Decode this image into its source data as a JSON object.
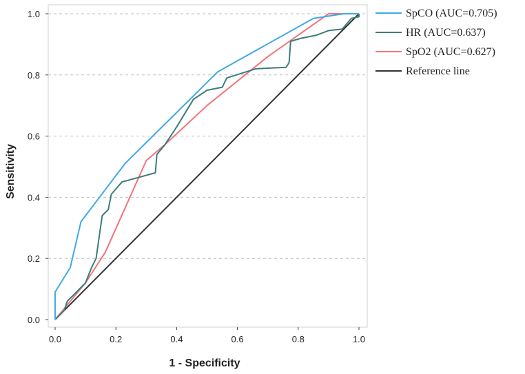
{
  "chart_data": {
    "type": "line",
    "title": "",
    "xlabel": "1 - Specificity",
    "ylabel": "Sensitivity",
    "xlim": [
      0,
      1
    ],
    "ylim": [
      0,
      1
    ],
    "xticks": [
      "0.0",
      "0.2",
      "0.4",
      "0.6",
      "0.8",
      "1.0"
    ],
    "yticks": [
      "0.0",
      "0.2",
      "0.4",
      "0.6",
      "0.8",
      "1.0"
    ],
    "grid": "horizontal dashed",
    "legend_position": "top-right",
    "series": [
      {
        "name": "SpCO (AUC=0.705)",
        "color": "#3fa9e6",
        "points": [
          [
            0,
            0
          ],
          [
            0,
            0.09
          ],
          [
            0.05,
            0.17
          ],
          [
            0.085,
            0.32
          ],
          [
            0.23,
            0.51
          ],
          [
            0.535,
            0.81
          ],
          [
            0.85,
            0.985
          ],
          [
            0.95,
            1.0
          ],
          [
            1,
            1
          ]
        ]
      },
      {
        "name": "HR (AUC=0.637)",
        "color": "#3a7d78",
        "points": [
          [
            0,
            0
          ],
          [
            0.02,
            0.02
          ],
          [
            0.03,
            0.03
          ],
          [
            0.04,
            0.06
          ],
          [
            0.06,
            0.08
          ],
          [
            0.08,
            0.1
          ],
          [
            0.1,
            0.12
          ],
          [
            0.12,
            0.17
          ],
          [
            0.135,
            0.2
          ],
          [
            0.145,
            0.27
          ],
          [
            0.155,
            0.34
          ],
          [
            0.175,
            0.36
          ],
          [
            0.185,
            0.41
          ],
          [
            0.22,
            0.45
          ],
          [
            0.33,
            0.48
          ],
          [
            0.335,
            0.54
          ],
          [
            0.36,
            0.57
          ],
          [
            0.4,
            0.63
          ],
          [
            0.455,
            0.72
          ],
          [
            0.5,
            0.75
          ],
          [
            0.55,
            0.76
          ],
          [
            0.565,
            0.79
          ],
          [
            0.66,
            0.82
          ],
          [
            0.76,
            0.825
          ],
          [
            0.77,
            0.84
          ],
          [
            0.775,
            0.91
          ],
          [
            0.81,
            0.92
          ],
          [
            0.86,
            0.93
          ],
          [
            0.9,
            0.945
          ],
          [
            0.945,
            0.95
          ],
          [
            0.975,
            0.985
          ],
          [
            1,
            0.99
          ],
          [
            1,
            1
          ]
        ]
      },
      {
        "name": "SpO2 (AUC=0.627)",
        "color": "#f07479",
        "points": [
          [
            0,
            0
          ],
          [
            0.05,
            0.06
          ],
          [
            0.1,
            0.12
          ],
          [
            0.165,
            0.22
          ],
          [
            0.3,
            0.52
          ],
          [
            0.37,
            0.58
          ],
          [
            0.5,
            0.7
          ],
          [
            0.6,
            0.78
          ],
          [
            0.7,
            0.86
          ],
          [
            0.8,
            0.93
          ],
          [
            0.9,
            1.0
          ],
          [
            1,
            1
          ]
        ]
      },
      {
        "name": "Reference line",
        "color": "#333333",
        "points": [
          [
            0,
            0
          ],
          [
            1,
            1
          ]
        ]
      }
    ]
  }
}
